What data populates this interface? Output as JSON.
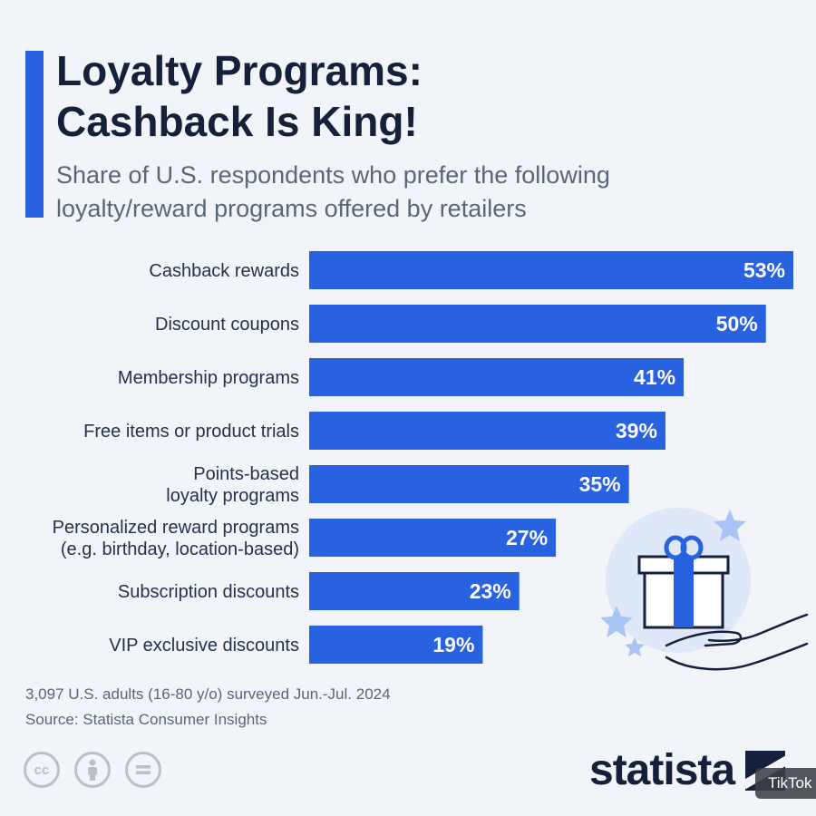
{
  "header": {
    "title_line1": "Loyalty Programs:",
    "title_line2": "Cashback Is King!",
    "subtitle_line1": "Share of U.S. respondents who prefer the following",
    "subtitle_line2": "loyalty/reward programs offered by retailers"
  },
  "chart_data": {
    "type": "bar",
    "orientation": "horizontal",
    "categories": [
      [
        "Cashback rewards"
      ],
      [
        "Discount coupons"
      ],
      [
        "Membership programs"
      ],
      [
        "Free items or product trials"
      ],
      [
        "Points-based",
        "loyalty programs"
      ],
      [
        "Personalized reward programs",
        "(e.g. birthday, location-based)"
      ],
      [
        "Subscription discounts"
      ],
      [
        "VIP exclusive discounts"
      ]
    ],
    "values": [
      53,
      50,
      41,
      39,
      35,
      27,
      23,
      19
    ],
    "value_labels": [
      "53%",
      "50%",
      "41%",
      "39%",
      "35%",
      "27%",
      "23%",
      "19%"
    ],
    "unit": "%",
    "xlim": [
      0,
      53
    ],
    "grid": false,
    "bar_color": "#2862e0"
  },
  "footer": {
    "note": "3,097 U.S. adults (16-80 y/o) surveyed Jun.-Jul. 2024",
    "source": "Source: Statista Consumer Insights",
    "cc_icons": [
      "cc-icon",
      "attribution-icon",
      "no-derivatives-icon"
    ],
    "cc_text": "cc",
    "brand": "statista"
  },
  "overlay": {
    "tiktok_label": "TikTok"
  },
  "colors": {
    "accent": "#2862e0",
    "dark": "#15203b",
    "background": "#f1f4f9"
  }
}
